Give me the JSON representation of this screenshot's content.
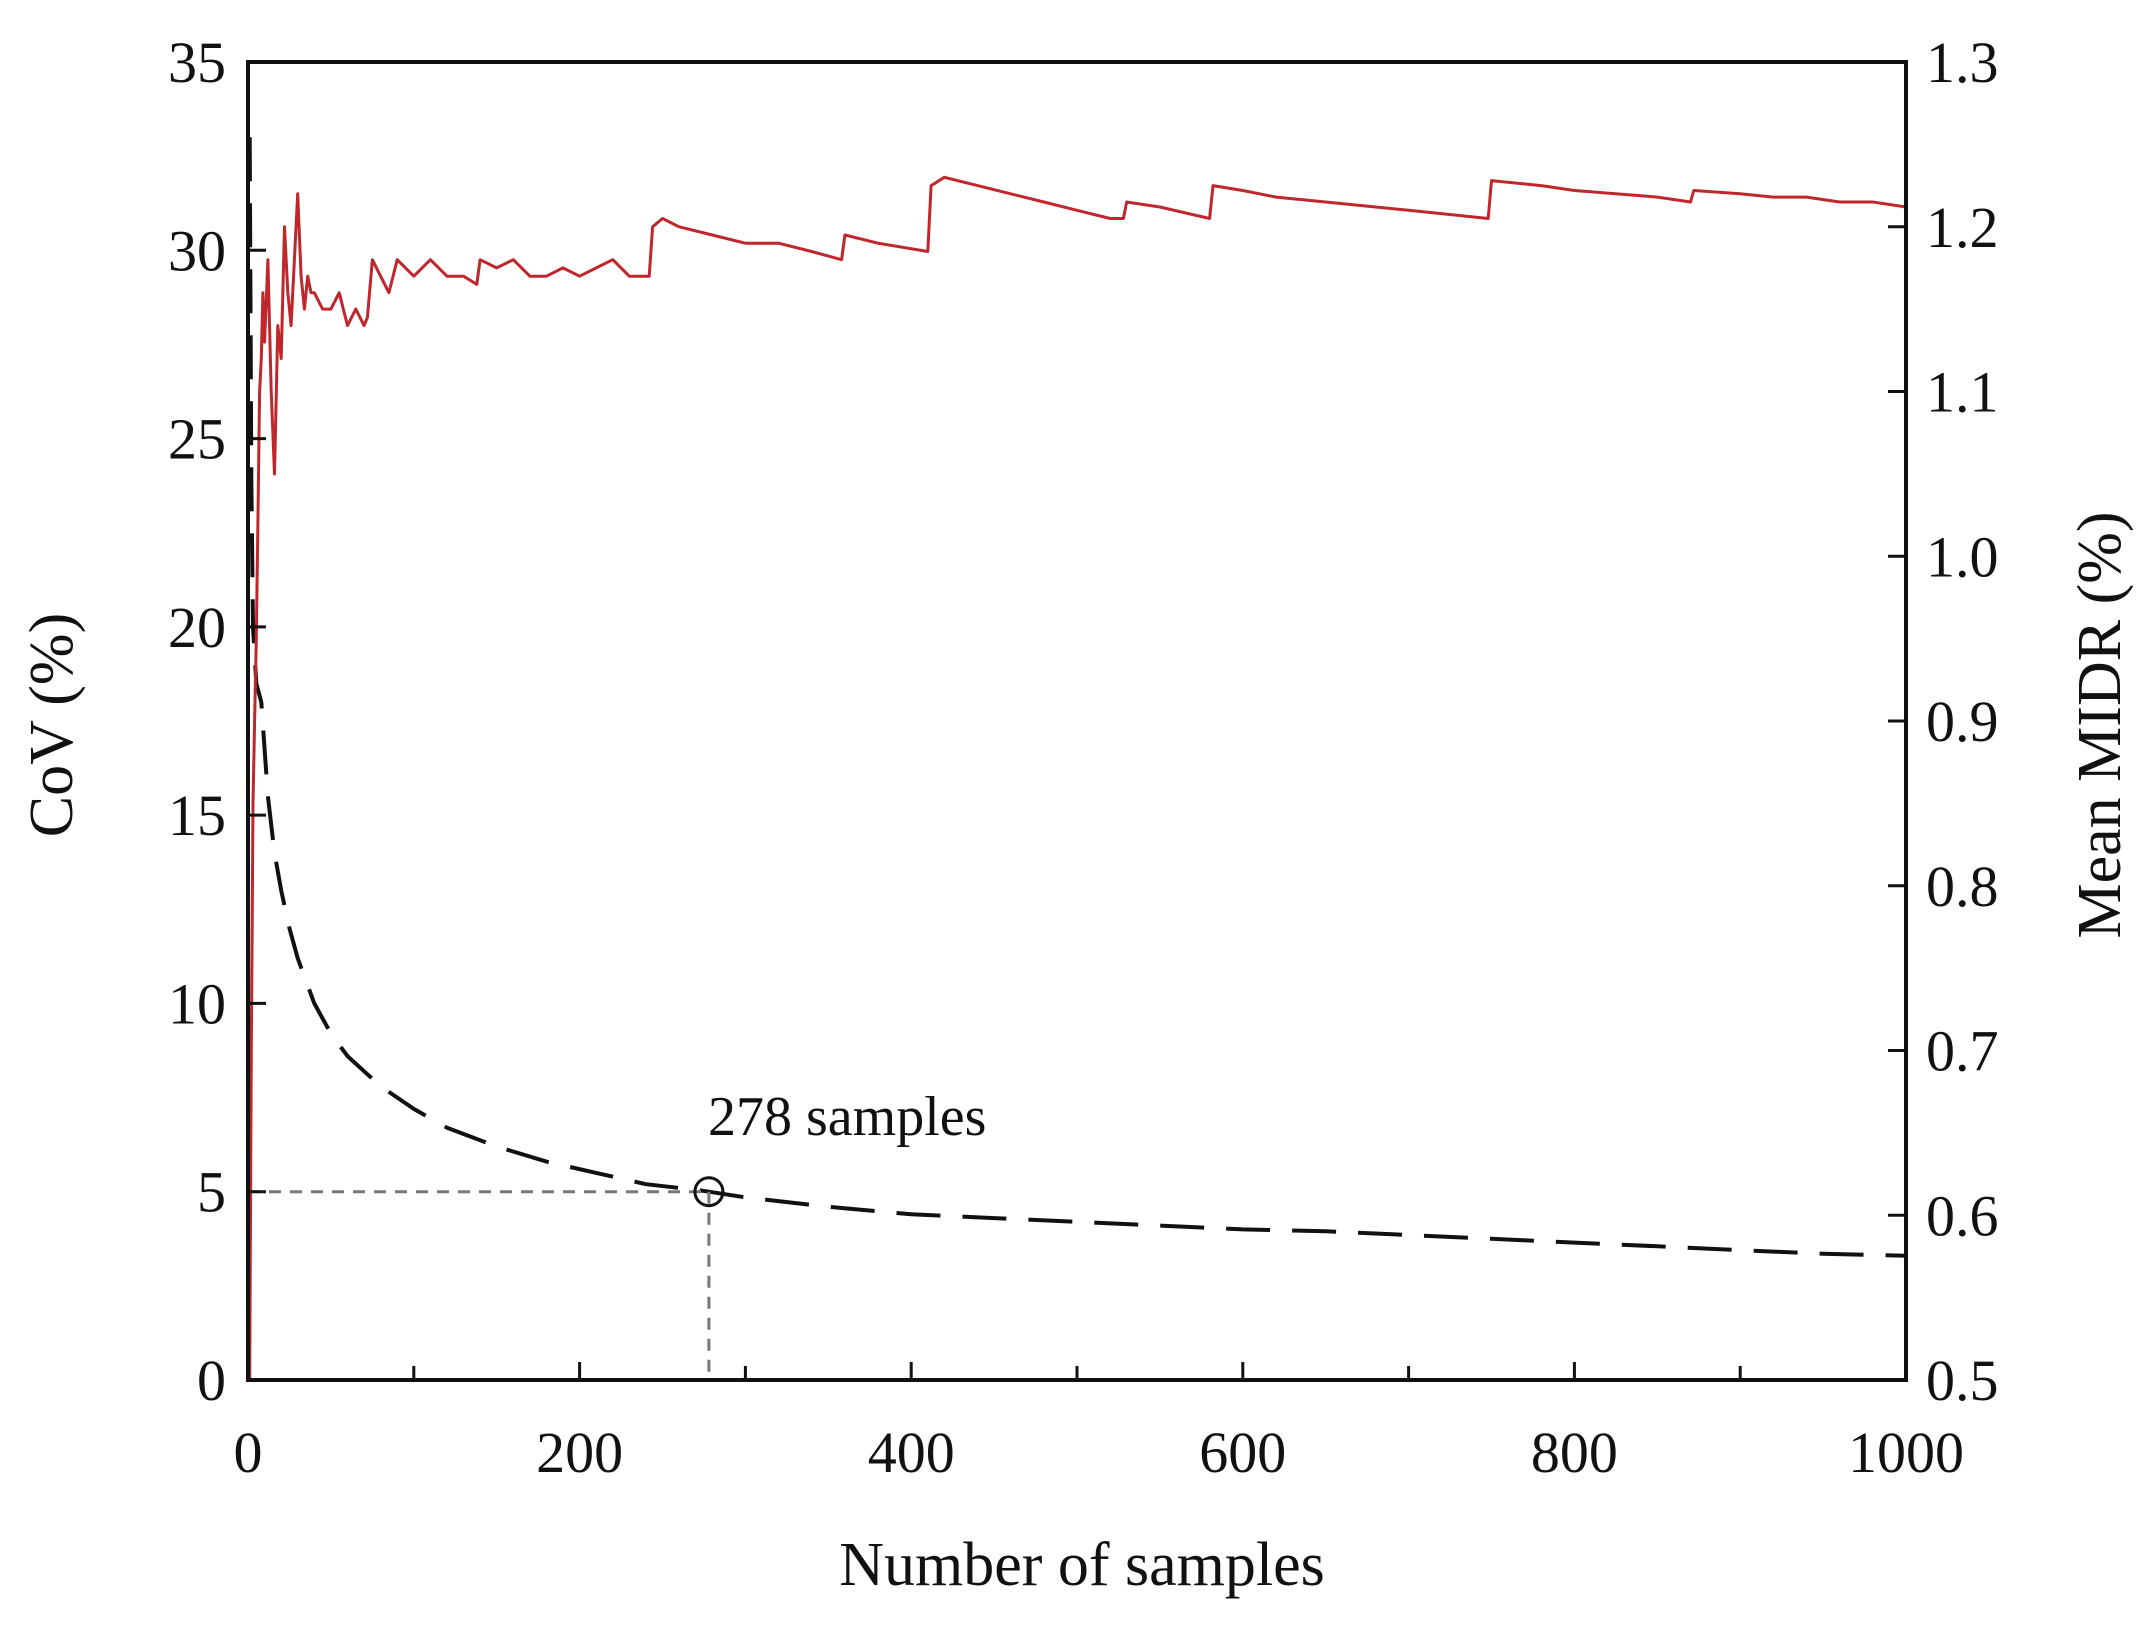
{
  "chart_data": {
    "type": "line",
    "title": "",
    "xlabel": "Number of samples",
    "ylabel_left": "CoV (%)",
    "ylabel_right": "Mean MIDR (%)",
    "xlim": [
      0,
      1000
    ],
    "ylim_left": [
      0,
      35
    ],
    "ylim_right": [
      0.5,
      1.3
    ],
    "x_ticks": [
      0,
      200,
      400,
      600,
      800,
      1000
    ],
    "x_minor_ticks": [
      100,
      300,
      500,
      700,
      900
    ],
    "y_left_ticks": [
      0,
      5,
      10,
      15,
      20,
      25,
      30,
      35
    ],
    "y_right_ticks": [
      0.5,
      0.6,
      0.7,
      0.8,
      0.9,
      1.0,
      1.1,
      1.2,
      1.3
    ],
    "y_right_tick_labels": [
      "0.5",
      "0.6",
      "0.7",
      "0.8",
      "0.9",
      "1.0",
      "1.1",
      "1.2",
      "1.3"
    ],
    "grid": false,
    "series": [
      {
        "name": "CoV",
        "axis": "left",
        "color": "#111111",
        "style": "dashed",
        "x": [
          1,
          2,
          3,
          5,
          8,
          12,
          16,
          20,
          25,
          30,
          40,
          50,
          60,
          80,
          100,
          120,
          150,
          180,
          210,
          240,
          270,
          278,
          300,
          350,
          400,
          450,
          500,
          550,
          600,
          650,
          700,
          750,
          800,
          850,
          900,
          950,
          1000
        ],
        "y": [
          33.0,
          24.0,
          20.0,
          18.5,
          18.0,
          15.5,
          14.0,
          13.0,
          12.0,
          11.2,
          10.0,
          9.2,
          8.6,
          7.8,
          7.2,
          6.7,
          6.2,
          5.8,
          5.5,
          5.2,
          5.05,
          5.0,
          4.85,
          4.6,
          4.4,
          4.3,
          4.2,
          4.1,
          4.0,
          3.95,
          3.85,
          3.75,
          3.65,
          3.55,
          3.45,
          3.35,
          3.3
        ]
      },
      {
        "name": "Mean MIDR",
        "axis": "right",
        "color": "#c0272d",
        "style": "solid",
        "x": [
          1,
          2,
          3,
          4,
          5,
          6,
          7,
          8,
          9,
          10,
          12,
          14,
          16,
          18,
          20,
          22,
          24,
          26,
          28,
          30,
          32,
          34,
          36,
          38,
          40,
          45,
          50,
          55,
          60,
          65,
          70,
          72,
          75,
          80,
          85,
          90,
          100,
          110,
          120,
          130,
          138,
          140,
          150,
          160,
          170,
          180,
          190,
          200,
          210,
          220,
          230,
          242,
          244,
          250,
          260,
          280,
          300,
          320,
          340,
          358,
          360,
          380,
          410,
          412,
          420,
          440,
          460,
          480,
          500,
          520,
          528,
          530,
          550,
          580,
          582,
          600,
          620,
          650,
          700,
          748,
          750,
          780,
          800,
          850,
          870,
          872,
          900,
          920,
          940,
          960,
          980,
          1000
        ],
        "y": [
          0.5,
          0.7,
          0.85,
          0.9,
          0.95,
          1.02,
          1.1,
          1.12,
          1.16,
          1.13,
          1.18,
          1.1,
          1.05,
          1.14,
          1.12,
          1.2,
          1.16,
          1.14,
          1.18,
          1.22,
          1.17,
          1.15,
          1.17,
          1.16,
          1.16,
          1.15,
          1.15,
          1.16,
          1.14,
          1.15,
          1.14,
          1.145,
          1.18,
          1.17,
          1.16,
          1.18,
          1.17,
          1.18,
          1.17,
          1.17,
          1.165,
          1.18,
          1.175,
          1.18,
          1.17,
          1.17,
          1.175,
          1.17,
          1.175,
          1.18,
          1.17,
          1.17,
          1.2,
          1.205,
          1.2,
          1.195,
          1.19,
          1.19,
          1.185,
          1.18,
          1.195,
          1.19,
          1.185,
          1.225,
          1.23,
          1.225,
          1.22,
          1.215,
          1.21,
          1.205,
          1.205,
          1.215,
          1.212,
          1.205,
          1.225,
          1.222,
          1.218,
          1.215,
          1.21,
          1.205,
          1.228,
          1.225,
          1.222,
          1.218,
          1.215,
          1.222,
          1.22,
          1.218,
          1.218,
          1.215,
          1.215,
          1.212
        ]
      },
      {
        "name": "5% threshold",
        "axis": "left",
        "color": "#777777",
        "style": "dashed",
        "x": [
          0,
          278
        ],
        "y": [
          5,
          5
        ]
      },
      {
        "name": "278 samples marker",
        "axis": "left",
        "color": "#777777",
        "style": "dashed",
        "x": [
          278,
          278
        ],
        "y": [
          5,
          0
        ]
      }
    ],
    "annotations": [
      {
        "text": "278 samples",
        "x": 278,
        "y": 5,
        "marker": "open-circle"
      }
    ]
  }
}
